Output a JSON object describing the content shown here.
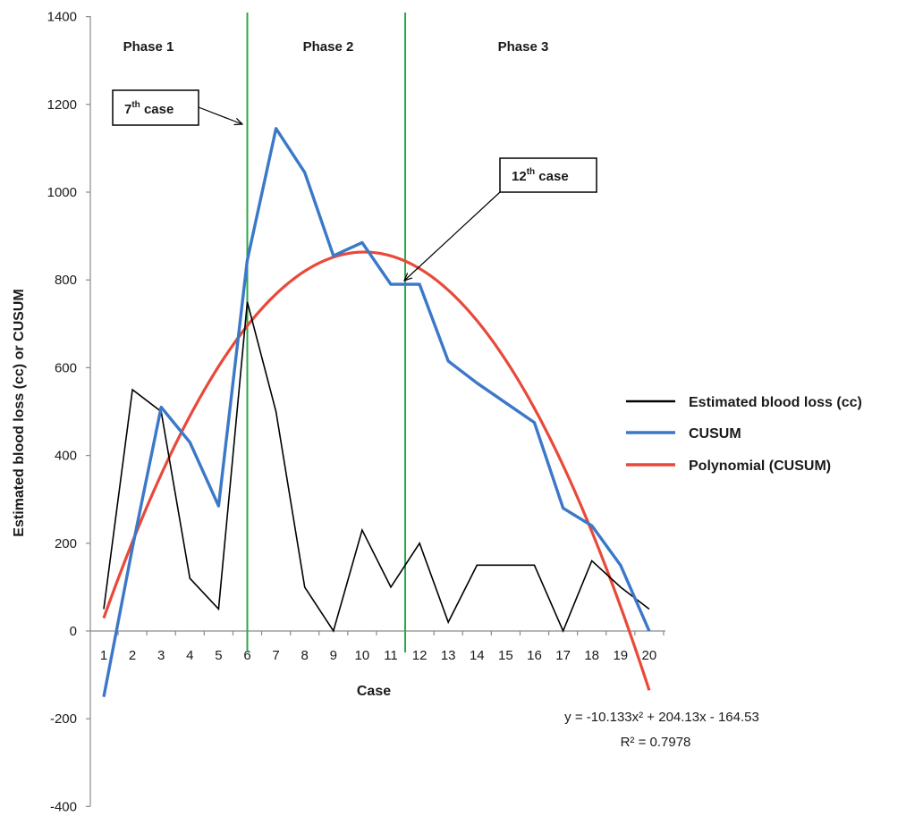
{
  "chart_data": {
    "type": "line",
    "title": "",
    "xlabel": "Case",
    "ylabel": "Estimated blood loss (cc) or CUSUM",
    "x": [
      1,
      2,
      3,
      4,
      5,
      6,
      7,
      8,
      9,
      10,
      11,
      12,
      13,
      14,
      15,
      16,
      17,
      18,
      19,
      20
    ],
    "x_tick_labels": [
      "1",
      "2",
      "3",
      "4",
      "5",
      "6",
      "7",
      "8",
      "9",
      "10",
      "11",
      "12",
      "13",
      "14",
      "15",
      "16",
      "17",
      "18",
      "19",
      "20"
    ],
    "ylim": [
      -400,
      1400
    ],
    "y_ticks": [
      -400,
      -200,
      0,
      200,
      400,
      600,
      800,
      1000,
      1200,
      1400
    ],
    "y_tick_labels": [
      "-400",
      "-200",
      "0",
      "200",
      "400",
      "600",
      "800",
      "1000",
      "1200",
      "1400"
    ],
    "grid": false,
    "legend_position": "right",
    "series": [
      {
        "name": "Estimated blood loss (cc)",
        "color": "#000000",
        "values": [
          50,
          550,
          500,
          120,
          50,
          750,
          500,
          100,
          0,
          230,
          100,
          200,
          20,
          150,
          150,
          150,
          0,
          160,
          100,
          50
        ]
      },
      {
        "name": "CUSUM",
        "color": "#3b78c8",
        "values": [
          -150,
          190,
          510,
          430,
          285,
          845,
          1145,
          1045,
          855,
          885,
          790,
          790,
          615,
          565,
          520,
          475,
          280,
          240,
          150,
          0
        ]
      },
      {
        "name": "Polynomial (CUSUM)",
        "color": "#e8493a",
        "type": "trendline",
        "coefficients": {
          "a": -10.133,
          "b": 204.13,
          "c": -164.53
        },
        "x_range": [
          1,
          20
        ]
      }
    ],
    "phase_lines_x": [
      6,
      11.5
    ],
    "phases": [
      "Phase 1",
      "Phase 2",
      "Phase 3"
    ],
    "annotations": [
      {
        "text": "7",
        "sup": "th",
        "suffix": " case"
      },
      {
        "text": "12",
        "sup": "th",
        "suffix": " case"
      }
    ],
    "equation": "y = -10.133x² + 204.13x - 164.53",
    "r_squared": "R² = 0.7978"
  }
}
